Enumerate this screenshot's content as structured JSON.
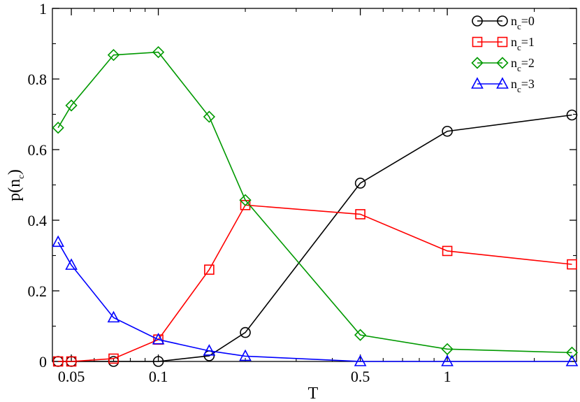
{
  "chart_data": {
    "type": "line",
    "xlabel": "T",
    "ylabel": "p(n_c)",
    "x_scale": "log",
    "xlim": [
      0.043,
      2.8
    ],
    "ylim": [
      0,
      1
    ],
    "x_ticks": [
      0.05,
      0.1,
      0.5,
      1
    ],
    "x_tick_labels": [
      "0.05",
      "0.1",
      "0.5",
      "1"
    ],
    "y_ticks": [
      0,
      0.2,
      0.4,
      0.6,
      0.8,
      1
    ],
    "y_tick_labels": [
      "0",
      "0.2",
      "0.4",
      "0.6",
      "0.8",
      "1"
    ],
    "grid": false,
    "legend_position": "top-right",
    "x": [
      0.045,
      0.05,
      0.07,
      0.1,
      0.15,
      0.2,
      0.5,
      1,
      2.7
    ],
    "series": [
      {
        "name": "n_c=0",
        "legend_main": "n",
        "legend_sub": "c",
        "legend_tail": "=0",
        "color": "#000000",
        "marker": "circle",
        "values": [
          0.0,
          0.0,
          0.0,
          0.0,
          0.016,
          0.082,
          0.505,
          0.652,
          0.698
        ]
      },
      {
        "name": "n_c=1",
        "legend_main": "n",
        "legend_sub": "c",
        "legend_tail": "=1",
        "color": "#ff0000",
        "marker": "square",
        "values": [
          0.0,
          0.0,
          0.008,
          0.062,
          0.26,
          0.443,
          0.417,
          0.313,
          0.275
        ]
      },
      {
        "name": "n_c=2",
        "legend_main": "n",
        "legend_sub": "c",
        "legend_tail": "=2",
        "color": "#009900",
        "marker": "diamond",
        "values": [
          0.662,
          0.725,
          0.868,
          0.876,
          0.693,
          0.457,
          0.075,
          0.035,
          0.025
        ]
      },
      {
        "name": "n_c=3",
        "legend_main": "n",
        "legend_sub": "c",
        "legend_tail": "=3",
        "color": "#0000ff",
        "marker": "triangle",
        "values": [
          0.338,
          0.273,
          0.124,
          0.062,
          0.03,
          0.015,
          0.0,
          0.0,
          0.0
        ]
      }
    ]
  },
  "labels": {
    "xlabel": "T",
    "ylabel_main": "p(n",
    "ylabel_sub": "c",
    "ylabel_tail": ")"
  }
}
